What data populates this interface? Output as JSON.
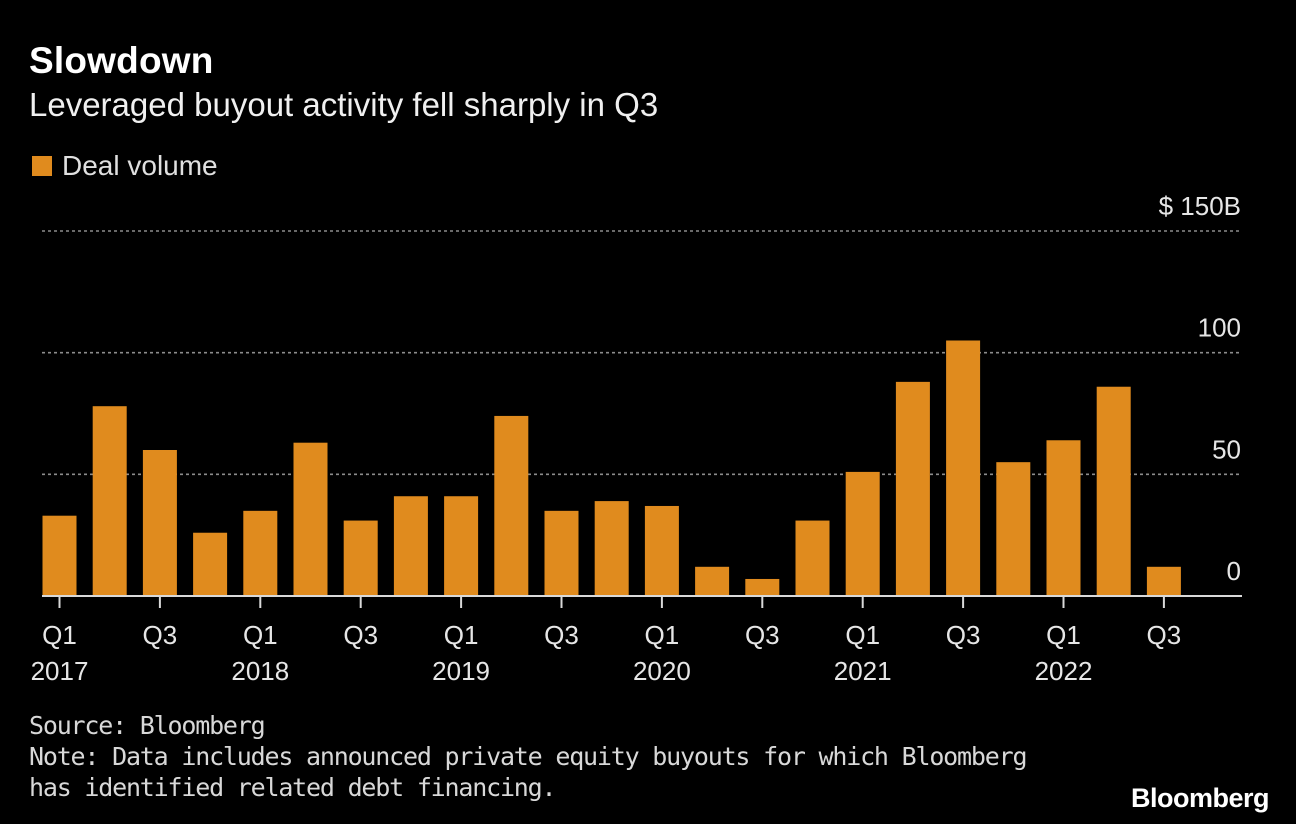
{
  "header": {
    "title": "Slowdown",
    "subtitle": "Leveraged buyout activity fell sharply in Q3"
  },
  "legend": {
    "label": "Deal volume"
  },
  "colors": {
    "bar": "#e08b1e",
    "background": "#000000",
    "gridline": "#8c8c8c",
    "axis": "#d9d9d9",
    "text": "#e6e6e6"
  },
  "chart_data": {
    "type": "bar",
    "categories": [
      "Q1 2017",
      "Q2 2017",
      "Q3 2017",
      "Q4 2017",
      "Q1 2018",
      "Q2 2018",
      "Q3 2018",
      "Q4 2018",
      "Q1 2019",
      "Q2 2019",
      "Q3 2019",
      "Q4 2019",
      "Q1 2020",
      "Q2 2020",
      "Q3 2020",
      "Q4 2020",
      "Q1 2021",
      "Q2 2021",
      "Q3 2021",
      "Q4 2021",
      "Q1 2022",
      "Q2 2022",
      "Q3 2022"
    ],
    "series": [
      {
        "name": "Deal volume",
        "values": [
          33,
          78,
          60,
          26,
          35,
          63,
          31,
          41,
          41,
          74,
          35,
          39,
          37,
          12,
          7,
          31,
          51,
          88,
          105,
          55,
          64,
          86,
          12
        ]
      }
    ],
    "ylim": [
      0,
      150
    ],
    "y_ticks": [
      {
        "value": 0,
        "label": "0"
      },
      {
        "value": 50,
        "label": "50"
      },
      {
        "value": 100,
        "label": "100"
      },
      {
        "value": 150,
        "label": "$ 150B"
      }
    ],
    "x_tick_labels": [
      {
        "index": 0,
        "quarter": "Q1",
        "year": "2017"
      },
      {
        "index": 2,
        "quarter": "Q3",
        "year": ""
      },
      {
        "index": 4,
        "quarter": "Q1",
        "year": "2018"
      },
      {
        "index": 6,
        "quarter": "Q3",
        "year": ""
      },
      {
        "index": 8,
        "quarter": "Q1",
        "year": "2019"
      },
      {
        "index": 10,
        "quarter": "Q3",
        "year": ""
      },
      {
        "index": 12,
        "quarter": "Q1",
        "year": "2020"
      },
      {
        "index": 14,
        "quarter": "Q3",
        "year": ""
      },
      {
        "index": 16,
        "quarter": "Q1",
        "year": "2021"
      },
      {
        "index": 18,
        "quarter": "Q3",
        "year": ""
      },
      {
        "index": 20,
        "quarter": "Q1",
        "year": "2022"
      },
      {
        "index": 22,
        "quarter": "Q3",
        "year": ""
      }
    ],
    "grid": true,
    "y_axis_position": "right"
  },
  "footer": {
    "source": "Source: Bloomberg",
    "note": "Note: Data includes announced private equity buyouts for which Bloomberg has identified related debt financing.",
    "brand": "Bloomberg"
  }
}
